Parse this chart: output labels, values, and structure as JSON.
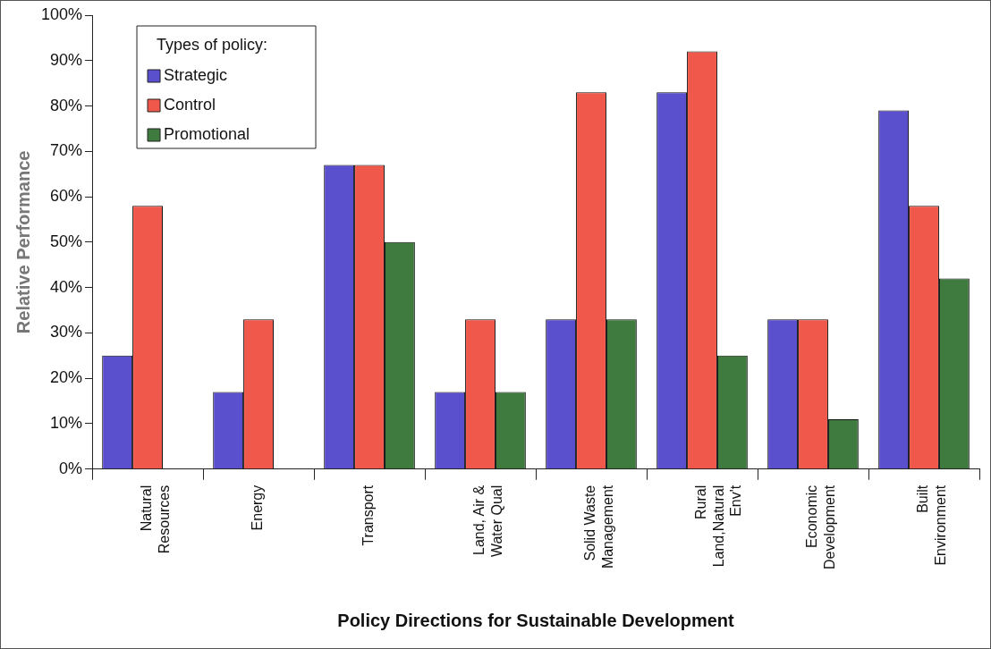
{
  "chart_data": {
    "type": "bar",
    "xlabel": "Policy Directions for Sustainable Development",
    "ylabel": "Relative Performance",
    "legend_title": "Types of policy:",
    "categories": [
      "Natural\nResources",
      "Energy",
      "Transport",
      "Land, Air &\nWater Qual",
      "Solid Waste\nManagement",
      "Rural\nLand,Natural\nEnv't",
      "Economic\nDevelopment",
      "Built\nEnvironment"
    ],
    "series": [
      {
        "name": "Strategic",
        "color": "#5a4fcc",
        "values": [
          25,
          17,
          67,
          17,
          33,
          83,
          33,
          79
        ]
      },
      {
        "name": "Control",
        "color": "#f0584c",
        "values": [
          58,
          33,
          67,
          33,
          83,
          92,
          33,
          58
        ]
      },
      {
        "name": "Promotional",
        "color": "#3f7a3f",
        "values": [
          0,
          0,
          50,
          17,
          33,
          25,
          11,
          42
        ]
      }
    ],
    "ylim": [
      0,
      100
    ],
    "yticks": [
      {
        "value": 0,
        "label": "0%"
      },
      {
        "value": 10,
        "label": "10%"
      },
      {
        "value": 20,
        "label": "20%"
      },
      {
        "value": 30,
        "label": "30%"
      },
      {
        "value": 40,
        "label": "40%"
      },
      {
        "value": 50,
        "label": "50%"
      },
      {
        "value": 60,
        "label": "60%"
      },
      {
        "value": 70,
        "label": "70%"
      },
      {
        "value": 80,
        "label": "80%"
      },
      {
        "value": 90,
        "label": "90%"
      },
      {
        "value": 100,
        "label": "100%"
      }
    ],
    "grid": false,
    "legend": "top left"
  }
}
